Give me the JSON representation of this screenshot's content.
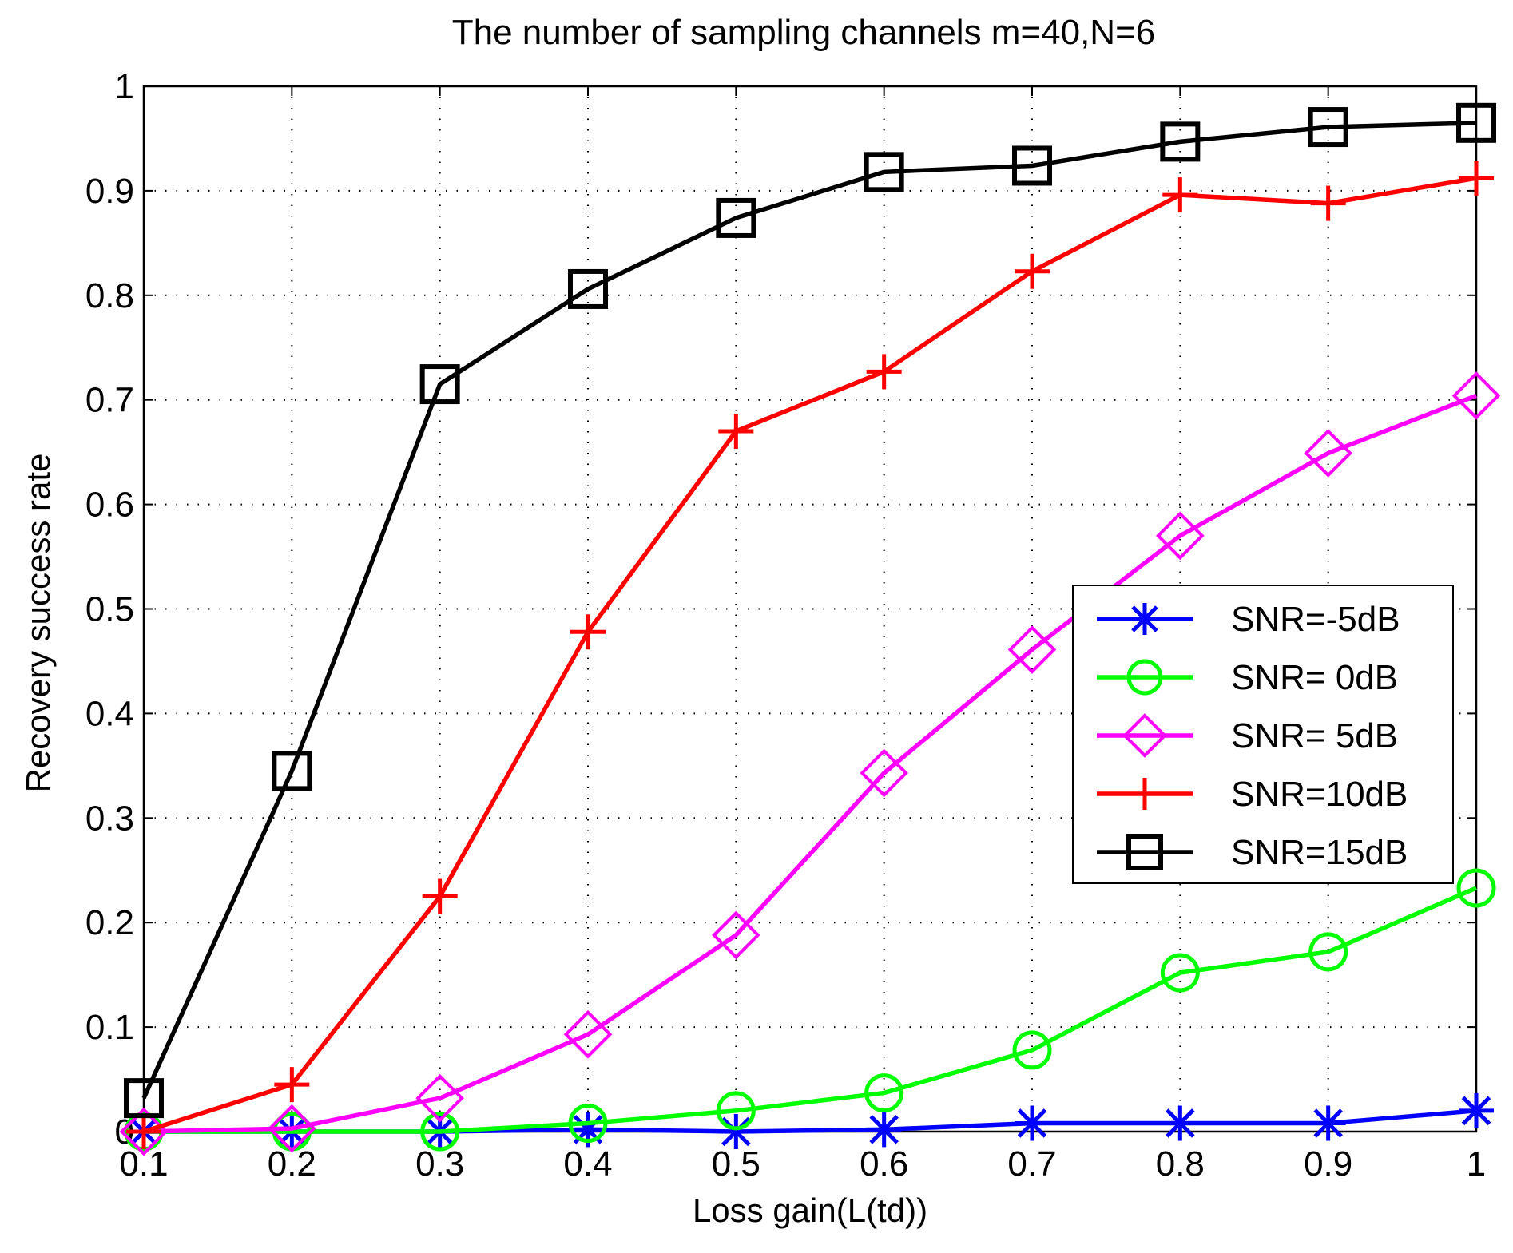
{
  "chart_data": {
    "type": "line",
    "title": "The number of sampling channels m=40,N=6",
    "xlabel": "Loss gain(L(td))",
    "ylabel": "Recovery success rate",
    "xlim": [
      0.1,
      1
    ],
    "ylim": [
      0,
      1
    ],
    "grid": true,
    "x": [
      0.1,
      0.2,
      0.3,
      0.4,
      0.5,
      0.6,
      0.7,
      0.8,
      0.9,
      1
    ],
    "xticks": [
      "0.1",
      "0.2",
      "0.3",
      "0.4",
      "0.5",
      "0.6",
      "0.7",
      "0.8",
      "0.9",
      "1"
    ],
    "yticks": [
      "0",
      "0.1",
      "0.2",
      "0.3",
      "0.4",
      "0.5",
      "0.6",
      "0.7",
      "0.8",
      "0.9",
      "1"
    ],
    "legend_position": "center-right",
    "series": [
      {
        "name": "SNR=-5dB",
        "color": "#0000ff",
        "marker": "asterisk",
        "values": [
          0,
          0,
          0,
          0.002,
          0,
          0.002,
          0.008,
          0.008,
          0.008,
          0.02
        ]
      },
      {
        "name": "SNR= 0dB",
        "color": "#00ff00",
        "marker": "circle",
        "values": [
          0,
          0,
          0,
          0.008,
          0.02,
          0.037,
          0.078,
          0.152,
          0.172,
          0.233
        ]
      },
      {
        "name": "SNR= 5dB",
        "color": "#ff00ff",
        "marker": "diamond",
        "values": [
          0,
          0.003,
          0.032,
          0.093,
          0.188,
          0.343,
          0.461,
          0.57,
          0.649,
          0.704
        ]
      },
      {
        "name": "SNR=10dB",
        "color": "#ff0000",
        "marker": "plus",
        "values": [
          0,
          0.045,
          0.225,
          0.478,
          0.67,
          0.727,
          0.823,
          0.896,
          0.888,
          0.912
        ]
      },
      {
        "name": "SNR=15dB",
        "color": "#000000",
        "marker": "square",
        "values": [
          0.032,
          0.345,
          0.715,
          0.806,
          0.874,
          0.918,
          0.924,
          0.947,
          0.961,
          0.965
        ]
      }
    ]
  }
}
